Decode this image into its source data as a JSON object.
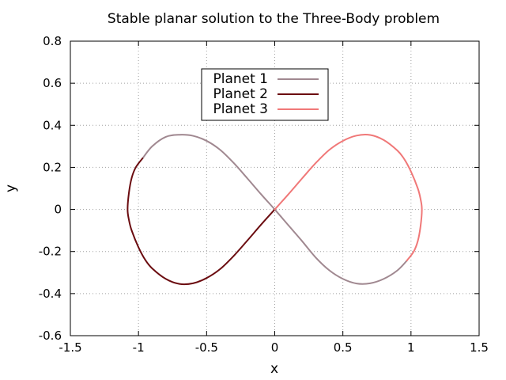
{
  "chart_data": {
    "type": "line",
    "title": "Stable planar solution to the Three-Body problem",
    "xlabel": "x",
    "ylabel": "y",
    "xlim": [
      -1.5,
      1.5
    ],
    "ylim": [
      -0.6,
      0.8
    ],
    "xticks": [
      -1.5,
      -1,
      -0.5,
      0,
      0.5,
      1,
      1.5
    ],
    "xtick_labels": [
      "-1.5",
      "-1",
      "-0.5",
      "0",
      "0.5",
      "1",
      "1.5"
    ],
    "yticks": [
      -0.6,
      -0.4,
      -0.2,
      0,
      0.2,
      0.4,
      0.6,
      0.8
    ],
    "ytick_labels": [
      "-0.6",
      "-0.4",
      "-0.2",
      "0",
      "0.2",
      "0.4",
      "0.6",
      "0.8"
    ],
    "grid": true,
    "legend_position": "top-center",
    "series": [
      {
        "name": "Planet 1",
        "color": "#a08890",
        "x": [
          -0.97,
          -0.9,
          -0.8,
          -0.7,
          -0.6,
          -0.5,
          -0.4,
          -0.3,
          -0.2,
          -0.1,
          0,
          0.1,
          0.2,
          0.3,
          0.4,
          0.5,
          0.6,
          0.7,
          0.8,
          0.9,
          0.97
        ],
        "y": [
          0.243,
          0.3,
          0.345,
          0.355,
          0.35,
          0.326,
          0.283,
          0.22,
          0.147,
          0.072,
          0,
          -0.075,
          -0.15,
          -0.228,
          -0.289,
          -0.33,
          -0.352,
          -0.351,
          -0.33,
          -0.29,
          -0.243
        ]
      },
      {
        "name": "Planet 2",
        "color": "#6b0c10",
        "x": [
          -0.97,
          -1.02,
          -1.05,
          -1.07,
          -1.08,
          -1.07,
          -1.05,
          -1.0,
          -0.95,
          -0.9,
          -0.8,
          -0.7,
          -0.6,
          -0.5,
          -0.4,
          -0.3,
          -0.2,
          -0.1,
          0
        ],
        "y": [
          0.243,
          0.2,
          0.15,
          0.08,
          0,
          -0.05,
          -0.1,
          -0.18,
          -0.24,
          -0.28,
          -0.33,
          -0.354,
          -0.351,
          -0.326,
          -0.283,
          -0.22,
          -0.147,
          -0.072,
          0
        ]
      },
      {
        "name": "Planet 3",
        "color": "#f07878",
        "x": [
          0,
          0.1,
          0.2,
          0.3,
          0.4,
          0.5,
          0.6,
          0.7,
          0.8,
          0.9,
          0.95,
          1.0,
          1.05,
          1.07,
          1.08,
          1.07,
          1.05,
          1.02,
          0.97
        ],
        "y": [
          0,
          0.072,
          0.147,
          0.22,
          0.283,
          0.326,
          0.351,
          0.354,
          0.33,
          0.28,
          0.24,
          0.18,
          0.1,
          0.05,
          0,
          -0.08,
          -0.15,
          -0.2,
          -0.243
        ]
      }
    ]
  }
}
